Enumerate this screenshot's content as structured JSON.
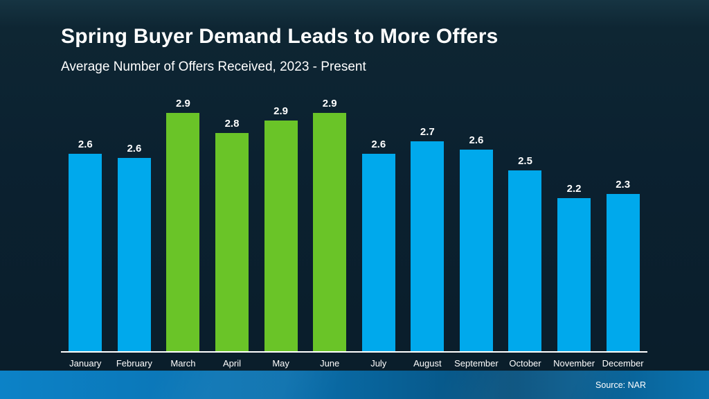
{
  "slide": {
    "title": "Spring Buyer Demand Leads to More Offers",
    "subtitle": "Average Number of Offers Received, 2023 - Present",
    "source_label": "Source: NAR"
  },
  "colors": {
    "background": "#0b2130",
    "background_top": "#163442",
    "text": "#ffffff",
    "bar_blue": "#00a9ec",
    "bar_green": "#6ac428",
    "baseline": "#ffffff",
    "footer_gradient": [
      "#0c82c7",
      "#0a70ae",
      "#06507d",
      "#0b72ae"
    ]
  },
  "chart_data": {
    "type": "bar",
    "title": "Spring Buyer Demand Leads to More Offers",
    "subtitle": "Average Number of Offers Received, 2023 - Present",
    "categories": [
      "January",
      "February",
      "March",
      "April",
      "May",
      "June",
      "July",
      "August",
      "September",
      "October",
      "November",
      "December"
    ],
    "values": [
      2.6,
      2.6,
      2.9,
      2.8,
      2.9,
      2.9,
      2.6,
      2.7,
      2.6,
      2.5,
      2.2,
      2.3
    ],
    "bar_colors": [
      "blue",
      "blue",
      "green",
      "green",
      "green",
      "green",
      "blue",
      "blue",
      "blue",
      "blue",
      "blue",
      "blue"
    ],
    "highlighted_categories": [
      "March",
      "April",
      "May",
      "June"
    ],
    "data_label_decimals": 1,
    "y_axis_visible": false,
    "gridlines": false,
    "legend": "none",
    "source": "Source: NAR"
  }
}
